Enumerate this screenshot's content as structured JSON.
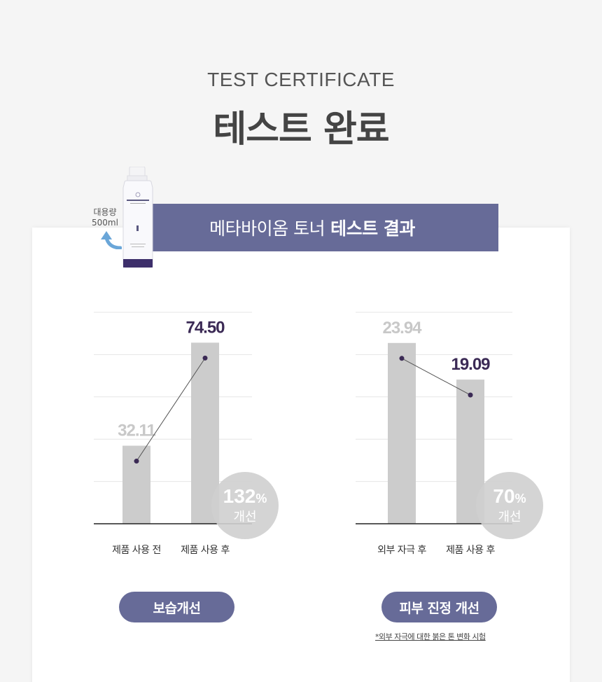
{
  "header": {
    "subtitle": "TEST CERTIFICATE",
    "title": "테스트 완료"
  },
  "product": {
    "capacity_line1": "대용량",
    "capacity_line2": "500ml"
  },
  "banner": {
    "regular": "메타바이옴 토너",
    "bold": "테스트 결과"
  },
  "colors": {
    "accent": "#676b98",
    "bar": "#cccccc",
    "value_dark": "#3b2a55",
    "value_light": "#c8c8c8",
    "badge": "#cfcfcf"
  },
  "chart_data": [
    {
      "type": "bar",
      "categories": [
        "제품 사용 전",
        "제품 사용 후"
      ],
      "values": [
        32.11,
        74.5
      ],
      "value_labels": [
        "32.11",
        "74.50"
      ],
      "ylim": [
        0,
        87
      ],
      "grid": true,
      "overlay_line": true,
      "badge": {
        "value": "132",
        "unit": "%",
        "label": "개선"
      },
      "caption": "보습개선"
    },
    {
      "type": "bar",
      "categories": [
        "외부 자극 후",
        "제품 사용 후"
      ],
      "values": [
        23.94,
        19.09
      ],
      "value_labels": [
        "23.94",
        "19.09"
      ],
      "ylim": [
        0,
        28
      ],
      "grid": true,
      "overlay_line": true,
      "badge": {
        "value": "70",
        "unit": "%",
        "label": "개선"
      },
      "caption": "피부 진정 개선"
    }
  ],
  "footnote": "*외부 자극에 대한 붉은 톤 변화 시험"
}
